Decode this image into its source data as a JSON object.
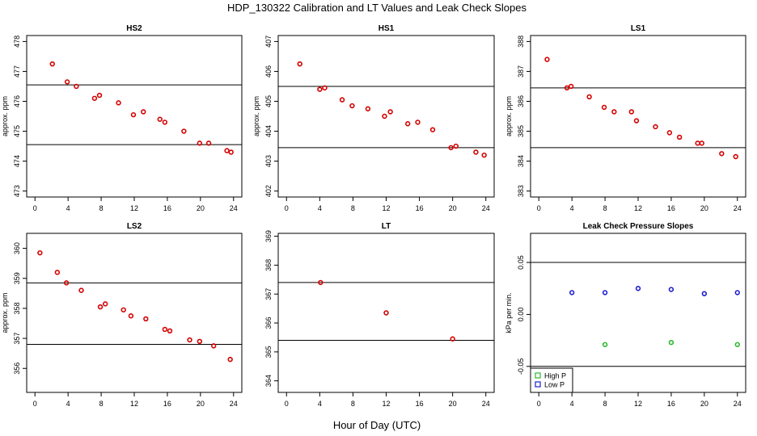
{
  "figure": {
    "title": "HDP_130322  Calibration and LT Values and Leak Check Slopes",
    "xlabel": "Hour of Day (UTC)"
  },
  "chart_data": [
    {
      "type": "scatter",
      "title": "HS2",
      "ylabel": "approx. ppm",
      "xlim": [
        -1,
        25
      ],
      "ylim": [
        472.8,
        478.2
      ],
      "xticks": [
        0,
        4,
        8,
        12,
        16,
        20,
        24
      ],
      "yticks": [
        473,
        474,
        475,
        476,
        477,
        478
      ],
      "hlines": [
        476.55,
        474.55
      ],
      "series": [
        {
          "color": "#d40000",
          "x": [
            2.1,
            3.9,
            5.0,
            7.2,
            7.8,
            10.1,
            11.9,
            13.1,
            15.1,
            15.7,
            18.0,
            19.9,
            21.0,
            23.2,
            23.7
          ],
          "y": [
            477.25,
            476.65,
            476.5,
            476.1,
            476.2,
            475.95,
            475.55,
            475.65,
            475.4,
            475.3,
            475.0,
            474.6,
            474.6,
            474.35,
            474.3
          ]
        }
      ]
    },
    {
      "type": "scatter",
      "title": "HS1",
      "ylabel": "approx. ppm",
      "xlim": [
        -1,
        25
      ],
      "ylim": [
        401.8,
        407.2
      ],
      "xticks": [
        0,
        4,
        8,
        12,
        16,
        20,
        24
      ],
      "yticks": [
        402,
        403,
        404,
        405,
        406,
        407
      ],
      "hlines": [
        405.5,
        403.45
      ],
      "series": [
        {
          "color": "#d40000",
          "x": [
            1.6,
            4.0,
            4.6,
            6.7,
            7.9,
            9.8,
            11.8,
            12.5,
            14.6,
            15.8,
            17.6,
            19.8,
            20.4,
            22.8,
            23.8
          ],
          "y": [
            406.25,
            405.4,
            405.45,
            405.05,
            404.85,
            404.75,
            404.5,
            404.65,
            404.25,
            404.3,
            404.05,
            403.45,
            403.5,
            403.3,
            403.2
          ]
        }
      ]
    },
    {
      "type": "scatter",
      "title": "LS1",
      "ylabel": "approx. ppm",
      "xlim": [
        -1,
        25
      ],
      "ylim": [
        382.8,
        388.2
      ],
      "xticks": [
        0,
        4,
        8,
        12,
        16,
        20,
        24
      ],
      "yticks": [
        383,
        384,
        385,
        386,
        387,
        388
      ],
      "hlines": [
        386.45,
        384.45
      ],
      "series": [
        {
          "color": "#d40000",
          "x": [
            1.0,
            3.4,
            3.9,
            6.1,
            7.9,
            9.1,
            11.2,
            11.8,
            14.1,
            15.8,
            17.0,
            19.2,
            19.7,
            22.1,
            23.8
          ],
          "y": [
            387.4,
            386.45,
            386.5,
            386.15,
            385.8,
            385.65,
            385.65,
            385.35,
            385.15,
            384.95,
            384.8,
            384.6,
            384.6,
            384.25,
            384.15
          ]
        }
      ]
    },
    {
      "type": "scatter",
      "title": "LS2",
      "ylabel": "approx. ppm",
      "xlim": [
        -1,
        25
      ],
      "ylim": [
        355.2,
        360.5
      ],
      "xticks": [
        0,
        4,
        8,
        12,
        16,
        20,
        24
      ],
      "yticks": [
        356,
        357,
        358,
        359,
        360
      ],
      "hlines": [
        358.85,
        356.8
      ],
      "series": [
        {
          "color": "#d40000",
          "x": [
            0.6,
            2.7,
            3.8,
            5.6,
            7.9,
            8.5,
            10.7,
            11.6,
            13.4,
            15.7,
            16.3,
            18.7,
            19.9,
            21.6,
            23.6
          ],
          "y": [
            359.85,
            359.2,
            358.85,
            358.6,
            358.05,
            358.15,
            357.95,
            357.75,
            357.65,
            357.3,
            357.25,
            356.95,
            356.9,
            356.75,
            356.3
          ]
        }
      ]
    },
    {
      "type": "scatter",
      "title": "LT",
      "ylabel": "",
      "xlim": [
        -1,
        25
      ],
      "ylim": [
        363.6,
        369.1
      ],
      "xticks": [
        0,
        4,
        8,
        12,
        16,
        20,
        24
      ],
      "yticks": [
        364,
        365,
        366,
        367,
        368,
        369
      ],
      "hlines": [
        367.4,
        365.4
      ],
      "series": [
        {
          "color": "#d40000",
          "x": [
            4.1,
            12.0,
            20.0
          ],
          "y": [
            367.4,
            366.35,
            365.45
          ]
        }
      ]
    },
    {
      "type": "scatter",
      "title": "Leak Check Pressure Slopes",
      "ylabel": "kPa per min.",
      "xlim": [
        -1,
        25
      ],
      "ylim": [
        -0.075,
        0.078
      ],
      "xticks": [
        0,
        4,
        8,
        12,
        16,
        20,
        24
      ],
      "yticks": [
        -0.05,
        0.0,
        0.05
      ],
      "ytick_labels": [
        "-0.05",
        "0.00",
        "0.05"
      ],
      "hlines": [
        0.05,
        -0.05
      ],
      "legend": {
        "position": "bottom-left"
      },
      "series": [
        {
          "name": "High P",
          "color": "#2db82d",
          "x": [
            8,
            16,
            24
          ],
          "y": [
            -0.029,
            -0.027,
            -0.029
          ]
        },
        {
          "name": "Low P",
          "color": "#1f1fd0",
          "x": [
            4,
            8,
            12,
            16,
            20,
            24
          ],
          "y": [
            0.021,
            0.021,
            0.025,
            0.024,
            0.02,
            0.021
          ]
        }
      ]
    }
  ]
}
